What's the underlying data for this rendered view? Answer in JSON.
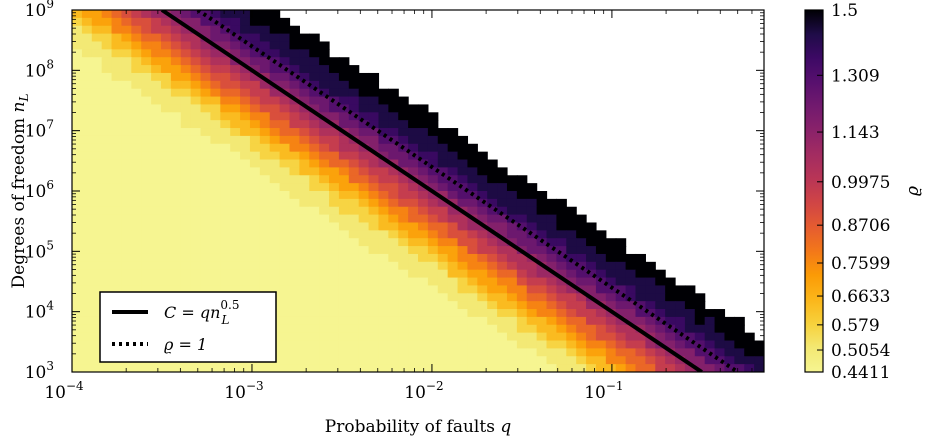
{
  "chart_data": {
    "type": "contour",
    "xlabel": {
      "text": "Probability of faults ",
      "var": "q"
    },
    "ylabel": {
      "text": "Degrees of freedom ",
      "var": "n",
      "sub": "L"
    },
    "xscale": "log",
    "yscale": "log",
    "xlim": [
      0.0001,
      0.7
    ],
    "ylim": [
      1000,
      1000000000
    ],
    "x_ticks": [
      {
        "base": "10",
        "exp": "−4",
        "value": 0.0001
      },
      {
        "base": "10",
        "exp": "−3",
        "value": 0.001
      },
      {
        "base": "10",
        "exp": "−2",
        "value": 0.01
      },
      {
        "base": "10",
        "exp": "−1",
        "value": 0.1
      }
    ],
    "y_ticks": [
      {
        "base": "10",
        "exp": "3",
        "value": 1000
      },
      {
        "base": "10",
        "exp": "4",
        "value": 10000
      },
      {
        "base": "10",
        "exp": "5",
        "value": 100000
      },
      {
        "base": "10",
        "exp": "6",
        "value": 1000000
      },
      {
        "base": "10",
        "exp": "7",
        "value": 10000000
      },
      {
        "base": "10",
        "exp": "8",
        "value": 100000000
      },
      {
        "base": "10",
        "exp": "9",
        "value": 1000000000
      }
    ],
    "colorbar": {
      "label": "ϱ",
      "ticks": [
        "1.5",
        "1.309",
        "1.143",
        "0.9975",
        "0.8706",
        "0.7599",
        "0.6633",
        "0.579",
        "0.5054",
        "0.4411"
      ],
      "tick_values": [
        1.5,
        1.309,
        1.143,
        0.9975,
        0.8706,
        0.7599,
        0.6633,
        0.579,
        0.5054,
        0.4411
      ],
      "colormap": "inferno"
    },
    "level_colors": [
      "#f6f591",
      "#f3e873",
      "#f7d13c",
      "#fbb61a",
      "#fb9b06",
      "#f37819",
      "#e55c30",
      "#d04545",
      "#b93556",
      "#a32c61",
      "#8a226a",
      "#721a6e",
      "#58106e",
      "#3d0965",
      "#1f0c48",
      "#000004"
    ],
    "levels": [
      0.43,
      0.4411,
      0.4736,
      0.5054,
      0.541,
      0.579,
      0.6198,
      0.6633,
      0.71,
      0.7599,
      0.8134,
      0.8706,
      0.9318,
      0.9975,
      1.068,
      1.143,
      1.309,
      1.5
    ],
    "surface_model": "rho depends on d = log10(q) + 0.5*log10(nL); ridge C = q*nL^0.5 at d = 1.0; rho = 1 at d ≈ 1.18",
    "series": [
      {
        "name": "C = qn_L^0.5",
        "style": "solid",
        "points": [
          [
            0.000316,
            1000000000
          ],
          [
            0.316,
            1000
          ]
        ]
      },
      {
        "name": "ϱ = 1",
        "style": "dotted",
        "points": [
          [
            0.0005,
            1000000000
          ],
          [
            0.5,
            1000
          ]
        ]
      }
    ],
    "legend": {
      "position": "lower-left",
      "entries": [
        {
          "style": "solid",
          "lhs": "C",
          "eq": " = ",
          "rhs": "qn",
          "sub": "L",
          "sup": "0.5"
        },
        {
          "style": "dotted",
          "lhs": "ϱ",
          "eq": " = ",
          "rhs": "1",
          "sub": "",
          "sup": ""
        }
      ]
    }
  }
}
